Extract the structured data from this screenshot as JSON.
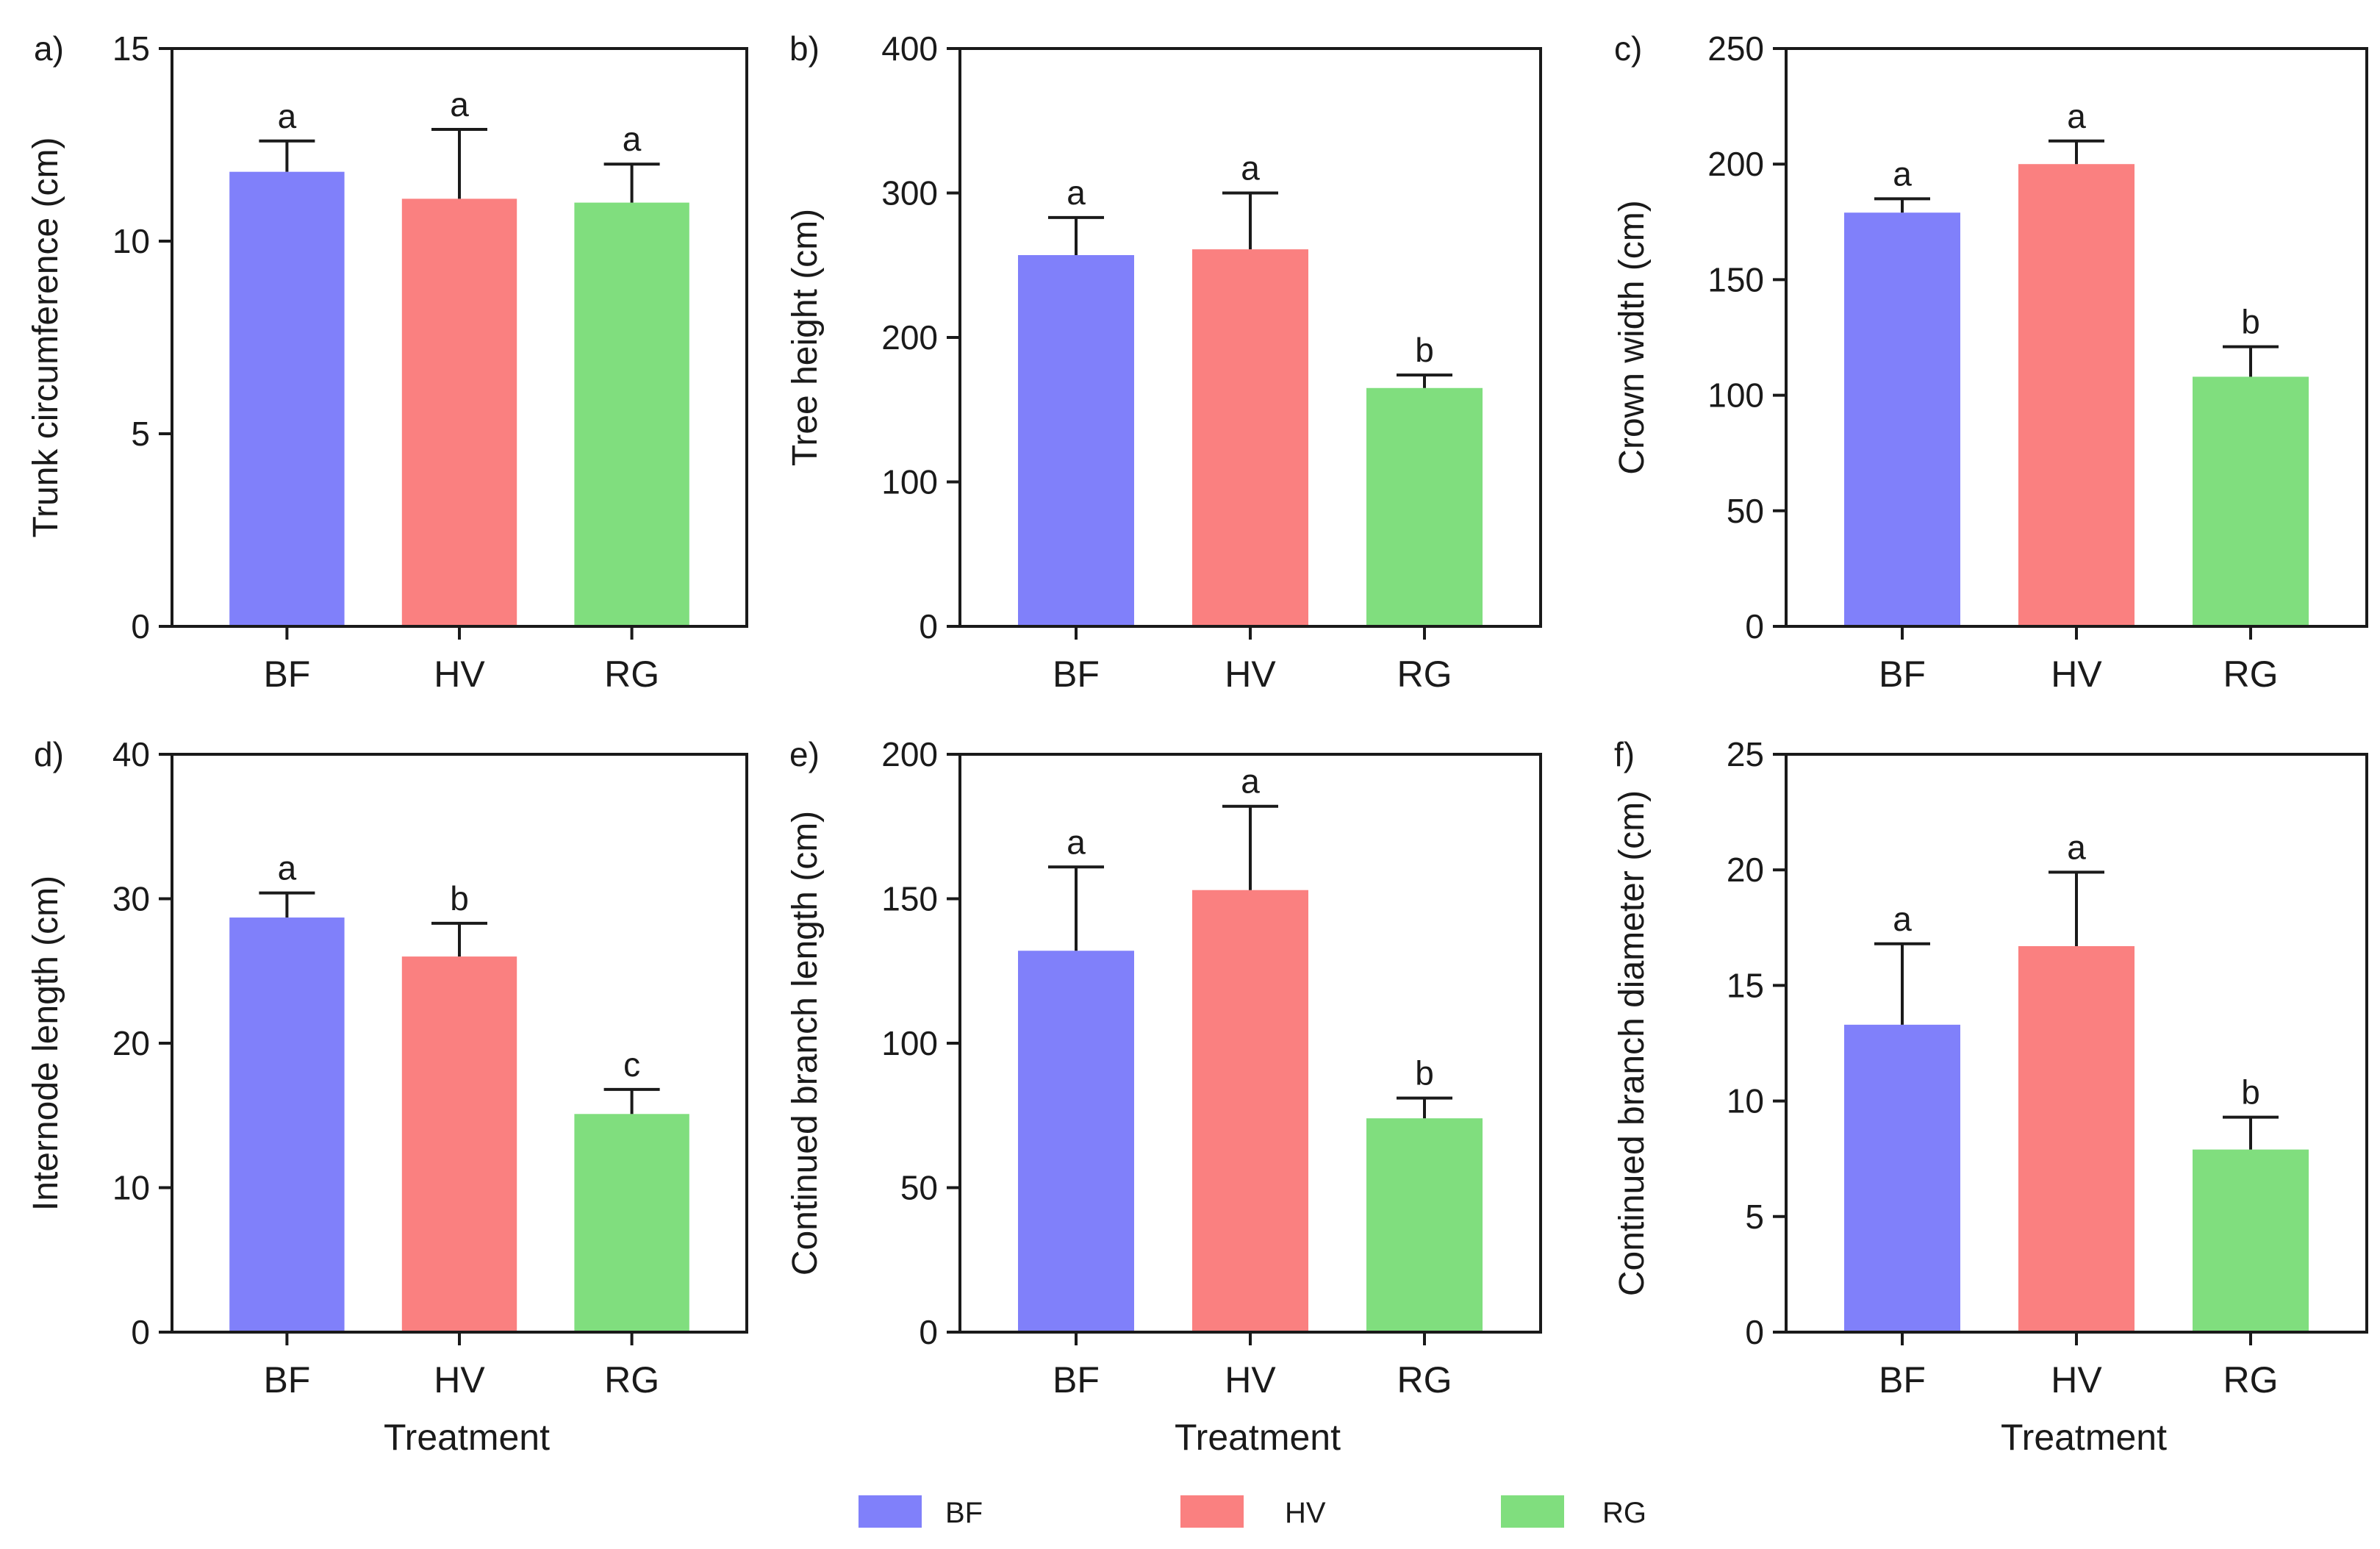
{
  "chart_data": [
    {
      "type": "bar",
      "panel_label": "a)",
      "categories": [
        "BF",
        "HV",
        "RG"
      ],
      "values": [
        11.8,
        11.1,
        11.0
      ],
      "errors": [
        0.8,
        1.8,
        1.0
      ],
      "significance": [
        "a",
        "a",
        "a"
      ],
      "ylabel": "Trunk circumference (cm)",
      "xlabel": "",
      "ylim": [
        0,
        15
      ],
      "yticks": [
        0,
        5,
        10,
        15
      ]
    },
    {
      "type": "bar",
      "panel_label": "b)",
      "categories": [
        "BF",
        "HV",
        "RG"
      ],
      "values": [
        257,
        261,
        165
      ],
      "errors": [
        26,
        39,
        9
      ],
      "significance": [
        "a",
        "a",
        "b"
      ],
      "ylabel": "Tree height (cm)",
      "xlabel": "",
      "ylim": [
        0,
        400
      ],
      "yticks": [
        0,
        100,
        200,
        300,
        400
      ]
    },
    {
      "type": "bar",
      "panel_label": "c)",
      "categories": [
        "BF",
        "HV",
        "RG"
      ],
      "values": [
        179,
        200,
        108
      ],
      "errors": [
        6,
        10,
        13
      ],
      "significance": [
        "a",
        "a",
        "b"
      ],
      "ylabel": "Crown width (cm)",
      "xlabel": "",
      "ylim": [
        0,
        250
      ],
      "yticks": [
        0,
        50,
        100,
        150,
        200,
        250
      ]
    },
    {
      "type": "bar",
      "panel_label": "d)",
      "categories": [
        "BF",
        "HV",
        "RG"
      ],
      "values": [
        28.7,
        26.0,
        15.1
      ],
      "errors": [
        1.7,
        2.3,
        1.7
      ],
      "significance": [
        "a",
        "b",
        "c"
      ],
      "ylabel": "Internode length (cm)",
      "xlabel": "Treatment",
      "ylim": [
        0,
        40
      ],
      "yticks": [
        0,
        10,
        20,
        30,
        40
      ]
    },
    {
      "type": "bar",
      "panel_label": "e)",
      "categories": [
        "BF",
        "HV",
        "RG"
      ],
      "values": [
        132,
        153,
        74
      ],
      "errors": [
        29,
        29,
        7
      ],
      "significance": [
        "a",
        "a",
        "b"
      ],
      "ylabel": "Continued branch length (cm)",
      "xlabel": "Treatment",
      "ylim": [
        0,
        200
      ],
      "yticks": [
        0,
        50,
        100,
        150,
        200
      ]
    },
    {
      "type": "bar",
      "panel_label": "f)",
      "categories": [
        "BF",
        "HV",
        "RG"
      ],
      "values": [
        13.3,
        16.7,
        7.9
      ],
      "errors": [
        3.5,
        3.2,
        1.4
      ],
      "significance": [
        "a",
        "a",
        "b"
      ],
      "ylabel": "Continued branch diameter (cm)",
      "xlabel": "Treatment",
      "ylim": [
        0,
        25
      ],
      "yticks": [
        0,
        5,
        10,
        15,
        20,
        25
      ]
    }
  ],
  "legend": {
    "items": [
      {
        "label": "BF",
        "color": "#8080fa"
      },
      {
        "label": "HV",
        "color": "#fa8080"
      },
      {
        "label": "RG",
        "color": "#80de7e"
      }
    ]
  },
  "colors": {
    "BF": "#8080fa",
    "HV": "#fa8080",
    "RG": "#80de7e",
    "axis": "#1a1a1a"
  }
}
